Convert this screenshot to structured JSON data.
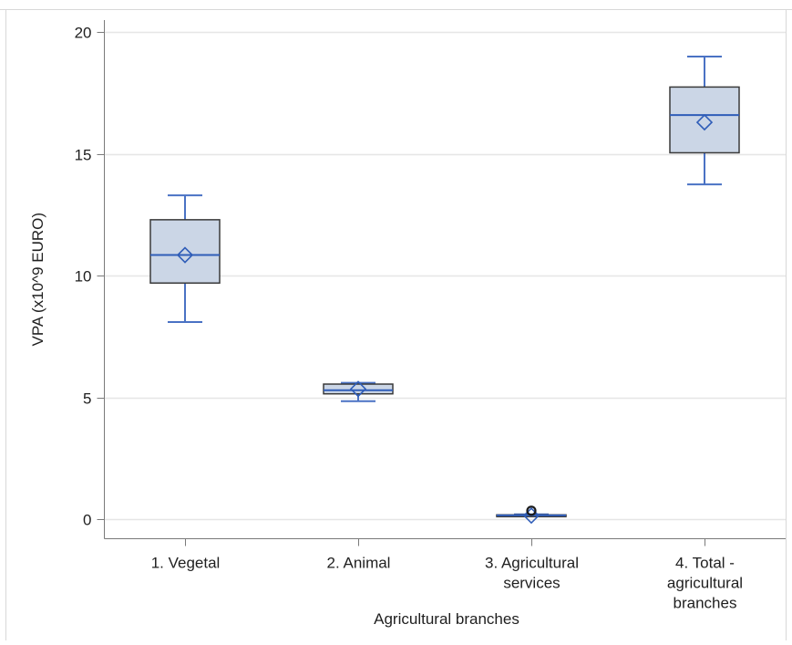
{
  "chart_data": {
    "type": "box",
    "title": "",
    "xlabel": "Agricultural branches",
    "ylabel": "VPA (x10^9 EURO)",
    "ylim": [
      -0.8,
      20.5
    ],
    "yticks": [
      0,
      5,
      10,
      15,
      20
    ],
    "grid": true,
    "legend": "none",
    "categories": [
      [
        "1. Vegetal"
      ],
      [
        "2. Animal"
      ],
      [
        "3. Agricultural",
        "services"
      ],
      [
        "4. Total -",
        "agricultural",
        "branches"
      ]
    ],
    "boxes": [
      {
        "whisker_low": 8.1,
        "q1": 9.7,
        "median": 10.85,
        "q3": 12.3,
        "whisker_high": 13.3,
        "mean": 10.85,
        "outliers": []
      },
      {
        "whisker_low": 4.85,
        "q1": 5.15,
        "median": 5.3,
        "q3": 5.55,
        "whisker_high": 5.6,
        "mean": 5.35,
        "outliers": []
      },
      {
        "whisker_low": 0.12,
        "q1": 0.14,
        "median": 0.16,
        "q3": 0.18,
        "whisker_high": 0.2,
        "mean": 0.15,
        "outliers": [
          0.35
        ]
      },
      {
        "whisker_low": 13.75,
        "q1": 15.05,
        "median": 16.6,
        "q3": 17.75,
        "whisker_high": 19.0,
        "mean": 16.3,
        "outliers": []
      }
    ],
    "colors": {
      "box_fill": "#cbd6e6",
      "box_edge": "#3a3a3a",
      "whisker": "#4a72c4",
      "median": "#2f5db8",
      "mean_marker": "#2f5db8",
      "outlier": "#1a1a1a",
      "grid": "#e6e6e6",
      "axis": "#7a7a7a"
    }
  }
}
